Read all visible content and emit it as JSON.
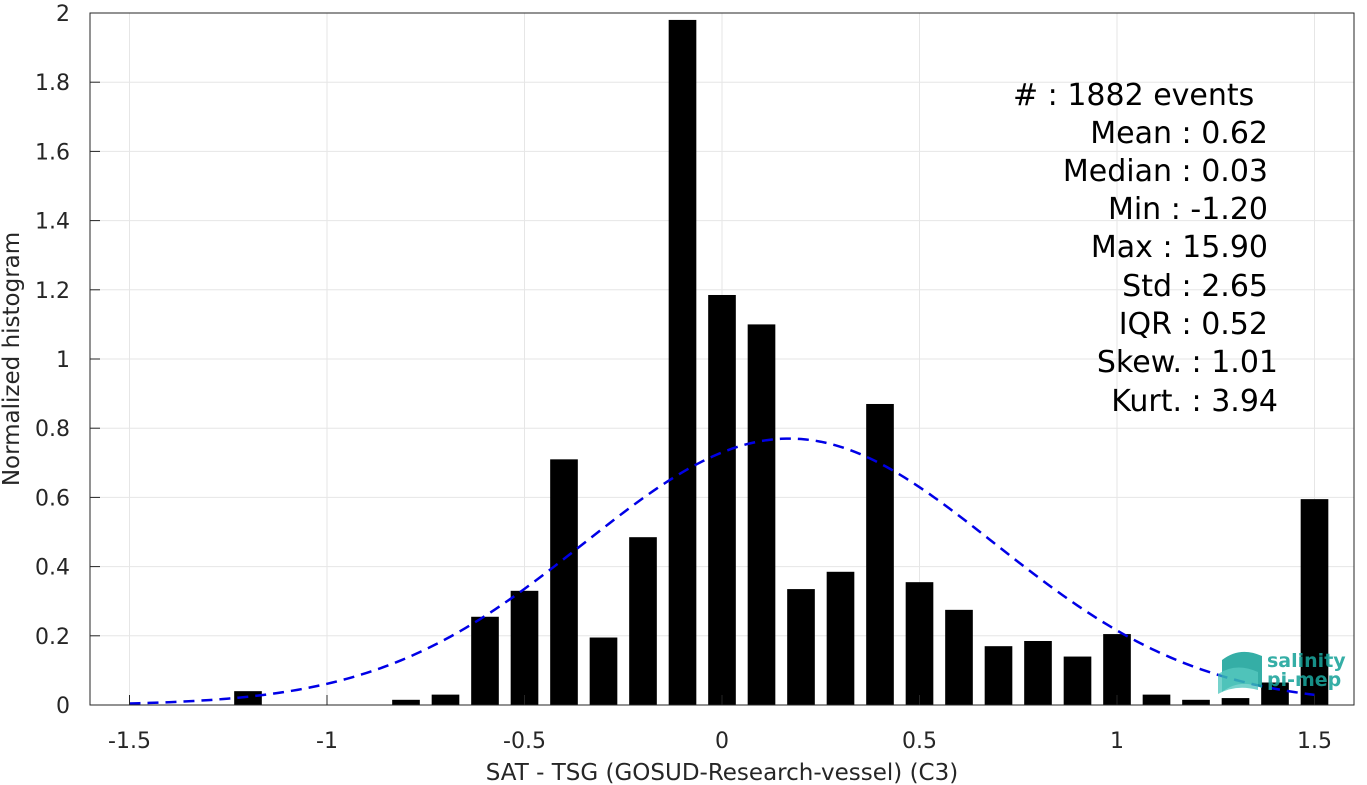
{
  "chart_data": {
    "type": "bar",
    "xlabel": "SAT - TSG (GOSUD-Research-vessel) (C3)",
    "ylabel": "Normalized histogram",
    "xlim": [
      -1.6,
      1.6
    ],
    "ylim": [
      0,
      2
    ],
    "x_ticks": [
      -1.5,
      -1,
      -0.5,
      0,
      0.5,
      1,
      1.5
    ],
    "x_tick_labels": [
      "-1.5",
      "-1",
      "-0.5",
      "0",
      "0.5",
      "1",
      "1.5"
    ],
    "y_ticks": [
      0,
      0.2,
      0.4,
      0.6,
      0.8,
      1,
      1.2,
      1.4,
      1.6,
      1.8,
      2
    ],
    "y_tick_labels": [
      "0",
      "0.2",
      "0.4",
      "0.6",
      "0.8",
      "1",
      "1.2",
      "1.4",
      "1.6",
      "1.8",
      "2"
    ],
    "grid": true,
    "bar_width": 0.07,
    "bar_color": "#000000",
    "x": [
      -1.2,
      -1.1,
      -1.0,
      -0.9,
      -0.8,
      -0.7,
      -0.6,
      -0.5,
      -0.4,
      -0.3,
      -0.2,
      -0.1,
      0.0,
      0.1,
      0.2,
      0.3,
      0.4,
      0.5,
      0.6,
      0.7,
      0.8,
      0.9,
      1.0,
      1.1,
      1.2,
      1.3,
      1.4,
      1.5
    ],
    "values": [
      0.04,
      0,
      0,
      0,
      0.015,
      0.03,
      0.255,
      0.33,
      0.71,
      0.195,
      0.485,
      1.98,
      1.185,
      1.1,
      0.335,
      0.385,
      0.87,
      0.355,
      0.275,
      0.17,
      0.185,
      0.14,
      0.205,
      0.03,
      0.015,
      0.02,
      0.065,
      0.595
    ],
    "fit_curve": {
      "type": "normal",
      "style": "dashed",
      "color": "#0000e6",
      "mean": 0.17,
      "std": 0.52,
      "peak": 0.77,
      "x_range": [
        -1.5,
        1.5
      ]
    }
  },
  "stats": {
    "lines": [
      "#  : 1882 events",
      "Mean : 0.62",
      "Median : 0.03",
      "Min : -1.20",
      "Max : 15.90",
      "Std : 2.65",
      "IQR : 0.52",
      "Skew. : 1.01",
      "Kurt. : 3.94"
    ]
  },
  "logo": {
    "line1": "salinity",
    "line2": "pi-mep",
    "color": "#1aa39a"
  }
}
